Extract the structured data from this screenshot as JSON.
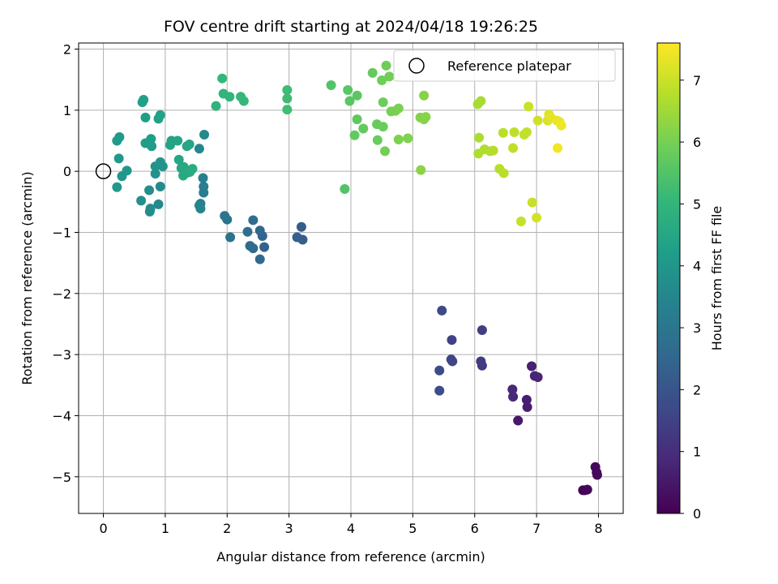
{
  "chart_data": {
    "type": "scatter",
    "title": "FOV centre drift starting at 2024/04/18 19:26:25",
    "xlabel": "Angular distance from reference (arcmin)",
    "ylabel": "Rotation from reference (arcmin)",
    "xlim": [
      -0.4,
      8.4
    ],
    "ylim": [
      -5.6,
      2.1
    ],
    "xticks": [
      0,
      1,
      2,
      3,
      4,
      5,
      6,
      7,
      8
    ],
    "yticks": [
      2,
      1,
      0,
      -1,
      -2,
      -3,
      -4,
      -5
    ],
    "grid": true,
    "legend": {
      "label": "Reference platepar",
      "placement": "top-right"
    },
    "reference_point": {
      "x": 0,
      "y": 0
    },
    "colorbar": {
      "label": "Hours from first FF file",
      "min": 0,
      "max": 7.6,
      "ticks": [
        0,
        1,
        2,
        3,
        4,
        5,
        6,
        7
      ],
      "colormap": "viridis"
    },
    "points": [
      {
        "x": 7.78,
        "y": -5.22,
        "h": 0.05
      },
      {
        "x": 7.75,
        "y": -5.22,
        "h": 0.08
      },
      {
        "x": 7.82,
        "y": -5.21,
        "h": 0.1
      },
      {
        "x": 7.95,
        "y": -4.84,
        "h": 0.15
      },
      {
        "x": 7.97,
        "y": -4.93,
        "h": 0.18
      },
      {
        "x": 7.98,
        "y": -4.97,
        "h": 0.2
      },
      {
        "x": 6.7,
        "y": -4.08,
        "h": 0.5
      },
      {
        "x": 6.85,
        "y": -3.86,
        "h": 0.6
      },
      {
        "x": 6.84,
        "y": -3.74,
        "h": 0.65
      },
      {
        "x": 6.92,
        "y": -3.19,
        "h": 0.7
      },
      {
        "x": 6.97,
        "y": -3.35,
        "h": 0.75
      },
      {
        "x": 7.02,
        "y": -3.37,
        "h": 0.8
      },
      {
        "x": 6.61,
        "y": -3.57,
        "h": 0.85
      },
      {
        "x": 6.62,
        "y": -3.69,
        "h": 0.9
      },
      {
        "x": 6.12,
        "y": -3.18,
        "h": 1.3
      },
      {
        "x": 6.1,
        "y": -3.11,
        "h": 1.35
      },
      {
        "x": 6.12,
        "y": -2.6,
        "h": 1.4
      },
      {
        "x": 5.63,
        "y": -2.76,
        "h": 1.5
      },
      {
        "x": 5.62,
        "y": -3.08,
        "h": 1.55
      },
      {
        "x": 5.64,
        "y": -3.11,
        "h": 1.6
      },
      {
        "x": 5.47,
        "y": -2.28,
        "h": 1.7
      },
      {
        "x": 5.43,
        "y": -3.26,
        "h": 1.75
      },
      {
        "x": 5.43,
        "y": -3.59,
        "h": 1.8
      },
      {
        "x": 3.2,
        "y": -0.91,
        "h": 2.2
      },
      {
        "x": 3.22,
        "y": -1.12,
        "h": 2.25
      },
      {
        "x": 3.13,
        "y": -1.08,
        "h": 2.3
      },
      {
        "x": 2.6,
        "y": -1.24,
        "h": 2.4
      },
      {
        "x": 2.57,
        "y": -1.06,
        "h": 2.45
      },
      {
        "x": 2.53,
        "y": -0.97,
        "h": 2.5
      },
      {
        "x": 2.53,
        "y": -1.44,
        "h": 2.55
      },
      {
        "x": 2.42,
        "y": -1.26,
        "h": 2.6
      },
      {
        "x": 2.37,
        "y": -1.22,
        "h": 2.65
      },
      {
        "x": 2.42,
        "y": -0.8,
        "h": 2.7
      },
      {
        "x": 2.33,
        "y": -0.99,
        "h": 2.75
      },
      {
        "x": 2.05,
        "y": -1.08,
        "h": 2.85
      },
      {
        "x": 2.0,
        "y": -0.79,
        "h": 2.9
      },
      {
        "x": 1.96,
        "y": -0.73,
        "h": 2.95
      },
      {
        "x": 1.62,
        "y": -0.35,
        "h": 3.2
      },
      {
        "x": 1.62,
        "y": -0.25,
        "h": 3.25
      },
      {
        "x": 1.61,
        "y": -0.11,
        "h": 3.3
      },
      {
        "x": 1.57,
        "y": -0.53,
        "h": 3.35
      },
      {
        "x": 1.57,
        "y": -0.61,
        "h": 3.4
      },
      {
        "x": 1.55,
        "y": -0.56,
        "h": 3.45
      },
      {
        "x": 1.55,
        "y": 0.37,
        "h": 3.5
      },
      {
        "x": 1.63,
        "y": 0.6,
        "h": 3.55
      },
      {
        "x": 0.89,
        "y": -0.54,
        "h": 3.6
      },
      {
        "x": 0.92,
        "y": -0.25,
        "h": 3.65
      },
      {
        "x": 0.76,
        "y": -0.61,
        "h": 3.7
      },
      {
        "x": 0.75,
        "y": -0.66,
        "h": 3.72
      },
      {
        "x": 0.74,
        "y": -0.31,
        "h": 3.75
      },
      {
        "x": 0.61,
        "y": -0.48,
        "h": 3.8
      },
      {
        "x": 0.84,
        "y": -0.04,
        "h": 3.85
      },
      {
        "x": 0.84,
        "y": 0.08,
        "h": 3.9
      },
      {
        "x": 0.96,
        "y": 0.08,
        "h": 3.92
      },
      {
        "x": 0.92,
        "y": 0.15,
        "h": 3.95
      },
      {
        "x": 0.38,
        "y": 0.01,
        "h": 4.0
      },
      {
        "x": 0.3,
        "y": -0.08,
        "h": 4.02
      },
      {
        "x": 0.22,
        "y": -0.26,
        "h": 4.05
      },
      {
        "x": 0.25,
        "y": 0.21,
        "h": 4.08
      },
      {
        "x": 0.22,
        "y": 0.5,
        "h": 4.1
      },
      {
        "x": 0.26,
        "y": 0.56,
        "h": 4.12
      },
      {
        "x": 0.75,
        "y": 0.46,
        "h": 4.15
      },
      {
        "x": 0.68,
        "y": 0.46,
        "h": 4.18
      },
      {
        "x": 0.78,
        "y": 0.41,
        "h": 4.2
      },
      {
        "x": 0.77,
        "y": 0.53,
        "h": 4.22
      },
      {
        "x": 0.68,
        "y": 0.88,
        "h": 4.25
      },
      {
        "x": 0.65,
        "y": 1.17,
        "h": 4.28
      },
      {
        "x": 0.63,
        "y": 1.13,
        "h": 4.3
      },
      {
        "x": 0.89,
        "y": 0.86,
        "h": 4.32
      },
      {
        "x": 0.92,
        "y": 0.92,
        "h": 4.35
      },
      {
        "x": 1.08,
        "y": 0.43,
        "h": 4.38
      },
      {
        "x": 1.1,
        "y": 0.5,
        "h": 4.4
      },
      {
        "x": 1.2,
        "y": 0.5,
        "h": 4.42
      },
      {
        "x": 1.35,
        "y": 0.41,
        "h": 4.45
      },
      {
        "x": 1.39,
        "y": 0.44,
        "h": 4.48
      },
      {
        "x": 1.22,
        "y": 0.19,
        "h": 4.5
      },
      {
        "x": 1.26,
        "y": 0.05,
        "h": 4.52
      },
      {
        "x": 1.3,
        "y": 0.07,
        "h": 4.55
      },
      {
        "x": 1.29,
        "y": -0.07,
        "h": 4.58
      },
      {
        "x": 1.37,
        "y": -0.02,
        "h": 4.6
      },
      {
        "x": 1.4,
        "y": -0.01,
        "h": 4.62
      },
      {
        "x": 1.44,
        "y": 0.04,
        "h": 4.65
      },
      {
        "x": 1.82,
        "y": 1.07,
        "h": 4.9
      },
      {
        "x": 1.94,
        "y": 1.27,
        "h": 4.95
      },
      {
        "x": 2.04,
        "y": 1.22,
        "h": 5.0
      },
      {
        "x": 1.92,
        "y": 1.52,
        "h": 5.02
      },
      {
        "x": 2.22,
        "y": 1.22,
        "h": 5.05
      },
      {
        "x": 2.27,
        "y": 1.15,
        "h": 5.08
      },
      {
        "x": 2.97,
        "y": 1.33,
        "h": 5.2
      },
      {
        "x": 2.97,
        "y": 1.19,
        "h": 5.22
      },
      {
        "x": 2.97,
        "y": 1.01,
        "h": 5.25
      },
      {
        "x": 3.68,
        "y": 1.41,
        "h": 5.5
      },
      {
        "x": 3.9,
        "y": -0.29,
        "h": 5.5
      },
      {
        "x": 3.95,
        "y": 1.33,
        "h": 5.6
      },
      {
        "x": 3.98,
        "y": 1.15,
        "h": 5.62
      },
      {
        "x": 4.1,
        "y": 1.24,
        "h": 5.65
      },
      {
        "x": 4.1,
        "y": 0.85,
        "h": 5.7
      },
      {
        "x": 4.06,
        "y": 0.59,
        "h": 5.72
      },
      {
        "x": 4.2,
        "y": 0.7,
        "h": 5.75
      },
      {
        "x": 4.35,
        "y": 1.61,
        "h": 5.78
      },
      {
        "x": 4.42,
        "y": 0.77,
        "h": 5.8
      },
      {
        "x": 4.43,
        "y": 0.51,
        "h": 5.82
      },
      {
        "x": 4.52,
        "y": 0.73,
        "h": 5.85
      },
      {
        "x": 4.52,
        "y": 1.13,
        "h": 5.88
      },
      {
        "x": 4.5,
        "y": 1.49,
        "h": 5.9
      },
      {
        "x": 4.57,
        "y": 1.73,
        "h": 5.92
      },
      {
        "x": 4.62,
        "y": 1.55,
        "h": 5.95
      },
      {
        "x": 4.55,
        "y": 0.33,
        "h": 5.97
      },
      {
        "x": 4.65,
        "y": 0.98,
        "h": 6.0
      },
      {
        "x": 4.72,
        "y": 0.99,
        "h": 6.02
      },
      {
        "x": 4.77,
        "y": 1.03,
        "h": 6.05
      },
      {
        "x": 4.77,
        "y": 0.52,
        "h": 6.08
      },
      {
        "x": 4.92,
        "y": 0.54,
        "h": 6.1
      },
      {
        "x": 5.12,
        "y": 0.88,
        "h": 6.15
      },
      {
        "x": 5.18,
        "y": 0.85,
        "h": 6.18
      },
      {
        "x": 5.18,
        "y": 1.24,
        "h": 6.2
      },
      {
        "x": 5.21,
        "y": 0.89,
        "h": 6.22
      },
      {
        "x": 5.13,
        "y": 0.02,
        "h": 6.25
      },
      {
        "x": 6.05,
        "y": 1.1,
        "h": 6.6
      },
      {
        "x": 6.1,
        "y": 1.15,
        "h": 6.62
      },
      {
        "x": 6.07,
        "y": 0.55,
        "h": 6.65
      },
      {
        "x": 6.06,
        "y": 0.29,
        "h": 6.68
      },
      {
        "x": 6.16,
        "y": 0.36,
        "h": 6.7
      },
      {
        "x": 6.25,
        "y": 0.33,
        "h": 6.72
      },
      {
        "x": 6.3,
        "y": 0.34,
        "h": 6.75
      },
      {
        "x": 6.4,
        "y": 0.04,
        "h": 6.78
      },
      {
        "x": 6.47,
        "y": -0.03,
        "h": 6.8
      },
      {
        "x": 6.46,
        "y": 0.63,
        "h": 6.82
      },
      {
        "x": 6.64,
        "y": 0.64,
        "h": 6.85
      },
      {
        "x": 6.62,
        "y": 0.38,
        "h": 6.88
      },
      {
        "x": 6.8,
        "y": 0.6,
        "h": 6.9
      },
      {
        "x": 6.84,
        "y": 0.64,
        "h": 6.92
      },
      {
        "x": 6.75,
        "y": -0.82,
        "h": 6.95
      },
      {
        "x": 6.93,
        "y": -0.51,
        "h": 6.98
      },
      {
        "x": 6.87,
        "y": 1.06,
        "h": 7.0
      },
      {
        "x": 7.02,
        "y": 0.83,
        "h": 7.05
      },
      {
        "x": 7.0,
        "y": -0.76,
        "h": 7.1
      },
      {
        "x": 7.18,
        "y": 0.83,
        "h": 7.2
      },
      {
        "x": 7.2,
        "y": 0.93,
        "h": 7.25
      },
      {
        "x": 7.23,
        "y": 0.88,
        "h": 7.3
      },
      {
        "x": 7.33,
        "y": 0.83,
        "h": 7.35
      },
      {
        "x": 7.37,
        "y": 0.81,
        "h": 7.4
      },
      {
        "x": 7.4,
        "y": 0.75,
        "h": 7.45
      },
      {
        "x": 7.34,
        "y": 0.38,
        "h": 7.5
      }
    ]
  }
}
